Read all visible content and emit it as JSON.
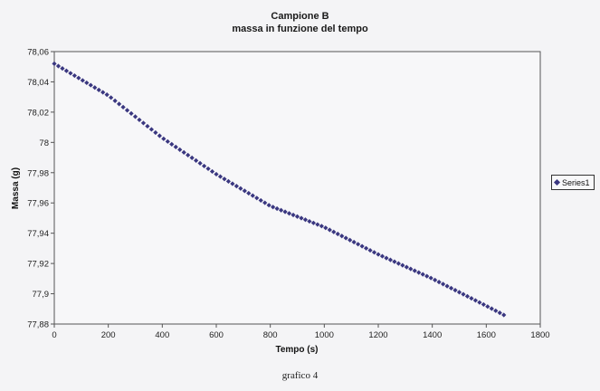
{
  "chart_data": {
    "type": "scatter",
    "title": "Campione B",
    "subtitle": "massa in funzione del tempo",
    "xlabel": "Tempo (s)",
    "ylabel": "Massa (g)",
    "xlim": [
      0,
      1800
    ],
    "ylim": [
      77.88,
      78.06
    ],
    "xticks": [
      "0",
      "200",
      "400",
      "600",
      "800",
      "1000",
      "1200",
      "1400",
      "1600",
      "1800"
    ],
    "yticks": [
      "77,88",
      "77,9",
      "77,92",
      "77,94",
      "77,96",
      "77,98",
      "78",
      "78,02",
      "78,04",
      "78,06"
    ],
    "grid": false,
    "legend_position": "right",
    "series": [
      {
        "name": "Series1",
        "color": "#3a3780",
        "marker": "diamond",
        "x_start": 0,
        "x_step": 15,
        "x_end": 1665,
        "y_at_x": [
          [
            0,
            78.052
          ],
          [
            200,
            78.031
          ],
          [
            400,
            78.003
          ],
          [
            600,
            77.979
          ],
          [
            800,
            77.958
          ],
          [
            1000,
            77.944
          ],
          [
            1200,
            77.926
          ],
          [
            1400,
            77.91
          ],
          [
            1600,
            77.892
          ],
          [
            1665,
            77.886
          ]
        ]
      }
    ]
  },
  "caption": "grafico 4"
}
